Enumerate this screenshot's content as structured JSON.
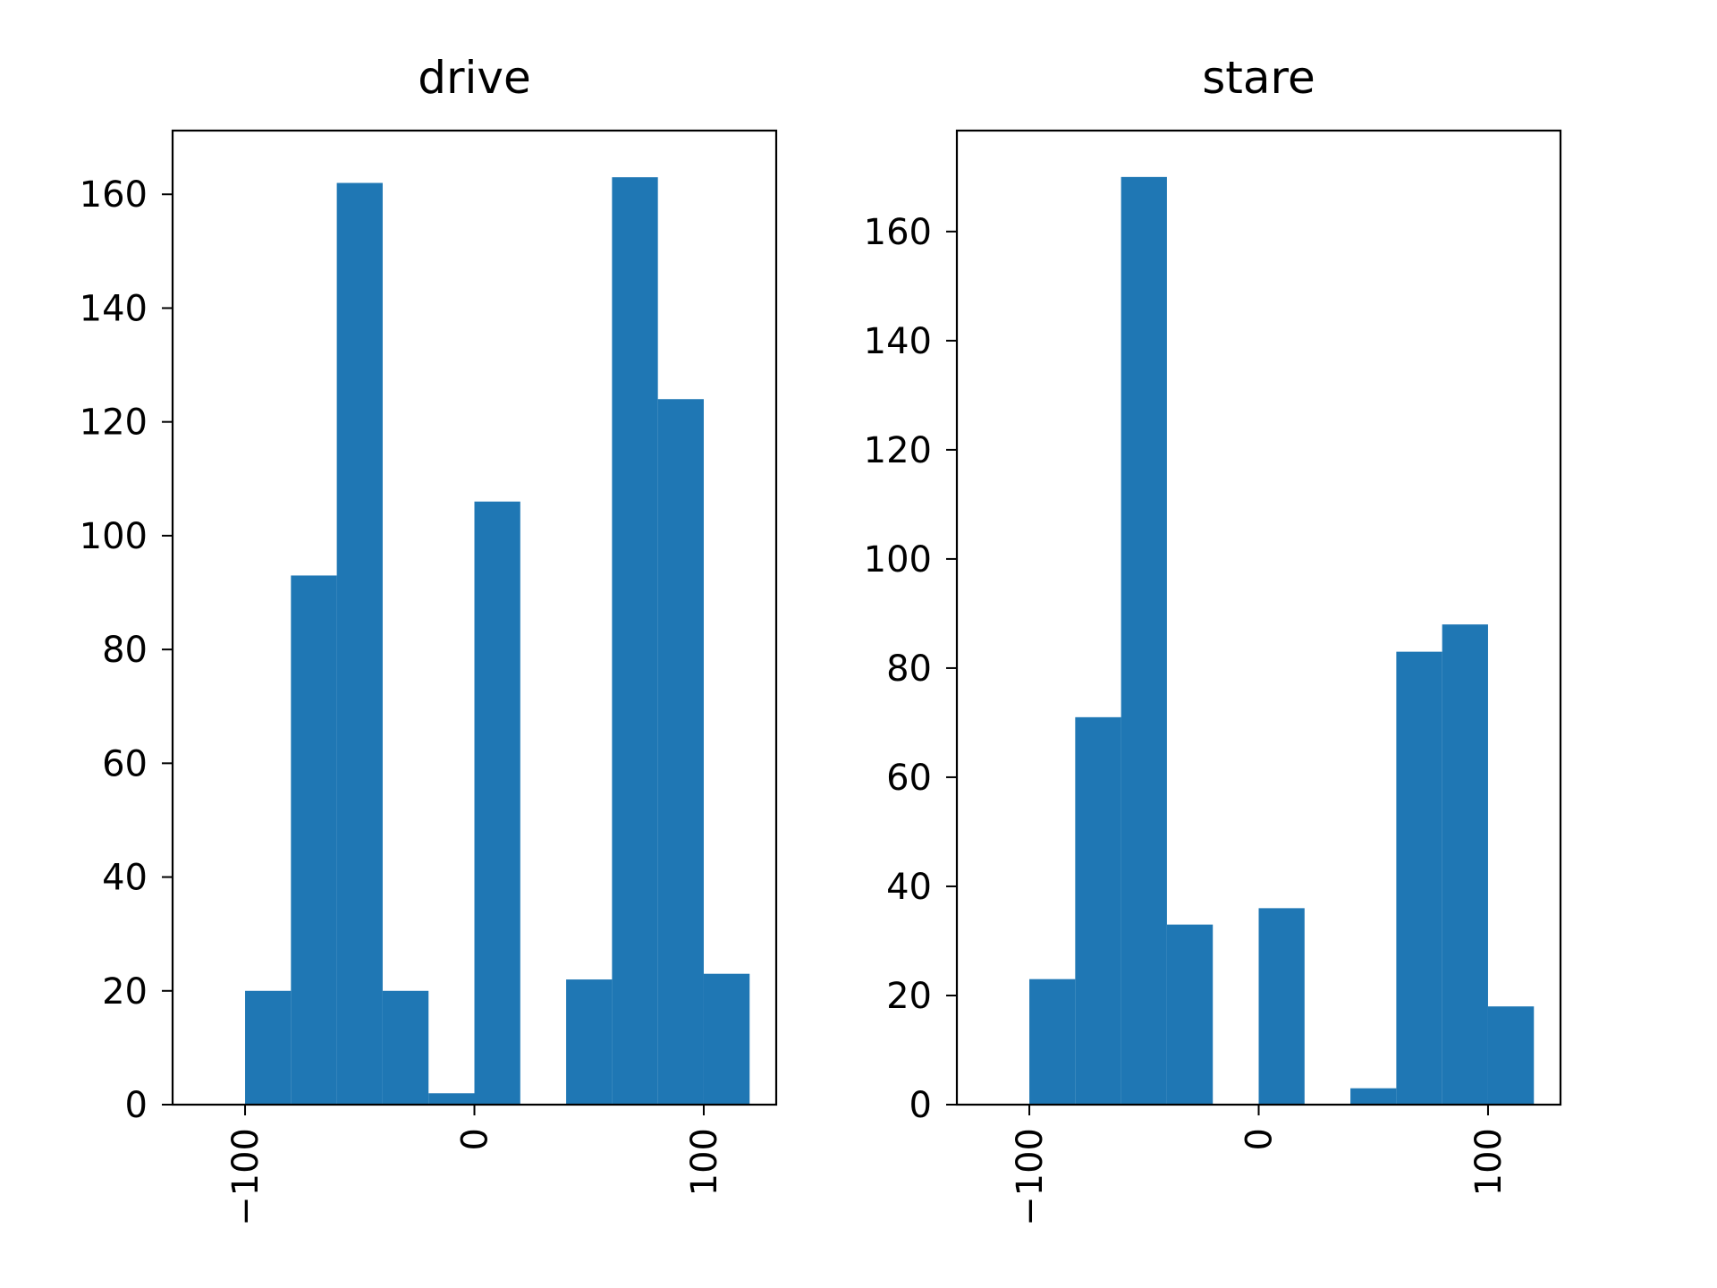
{
  "chart_data": [
    {
      "type": "bar",
      "title": "drive",
      "xlabel": "",
      "ylabel": "",
      "xlim": [
        -131.6,
        131.6
      ],
      "ylim": [
        0,
        171.2
      ],
      "xticks": [
        -100,
        0,
        100
      ],
      "xtick_labels": [
        "−100",
        "0",
        "100"
      ],
      "xtick_rotation": "vertical",
      "yticks": [
        0,
        20,
        40,
        60,
        80,
        100,
        120,
        140,
        160
      ],
      "ytick_labels": [
        "0",
        "20",
        "40",
        "60",
        "80",
        "100",
        "120",
        "140",
        "160"
      ],
      "bin_edges": [
        -100,
        -80,
        -60,
        -40,
        -20,
        0,
        20,
        40,
        60,
        80,
        100,
        120
      ],
      "values": [
        20,
        93,
        162,
        20,
        2,
        106,
        0,
        22,
        163,
        124,
        23
      ],
      "grid": false,
      "bar_color": "#1f77b4"
    },
    {
      "type": "bar",
      "title": "stare",
      "xlabel": "",
      "ylabel": "",
      "xlim": [
        -131.6,
        131.6
      ],
      "ylim": [
        0,
        178.5
      ],
      "xticks": [
        -100,
        0,
        100
      ],
      "xtick_labels": [
        "−100",
        "0",
        "100"
      ],
      "xtick_rotation": "vertical",
      "yticks": [
        0,
        20,
        40,
        60,
        80,
        100,
        120,
        140,
        160
      ],
      "ytick_labels": [
        "0",
        "20",
        "40",
        "60",
        "80",
        "100",
        "120",
        "140",
        "160"
      ],
      "bin_edges": [
        -100,
        -80,
        -60,
        -40,
        -20,
        0,
        20,
        40,
        60,
        80,
        100,
        120
      ],
      "values": [
        23,
        71,
        170,
        33,
        0,
        36,
        0,
        3,
        83,
        88,
        18
      ],
      "grid": false,
      "bar_color": "#1f77b4"
    }
  ]
}
